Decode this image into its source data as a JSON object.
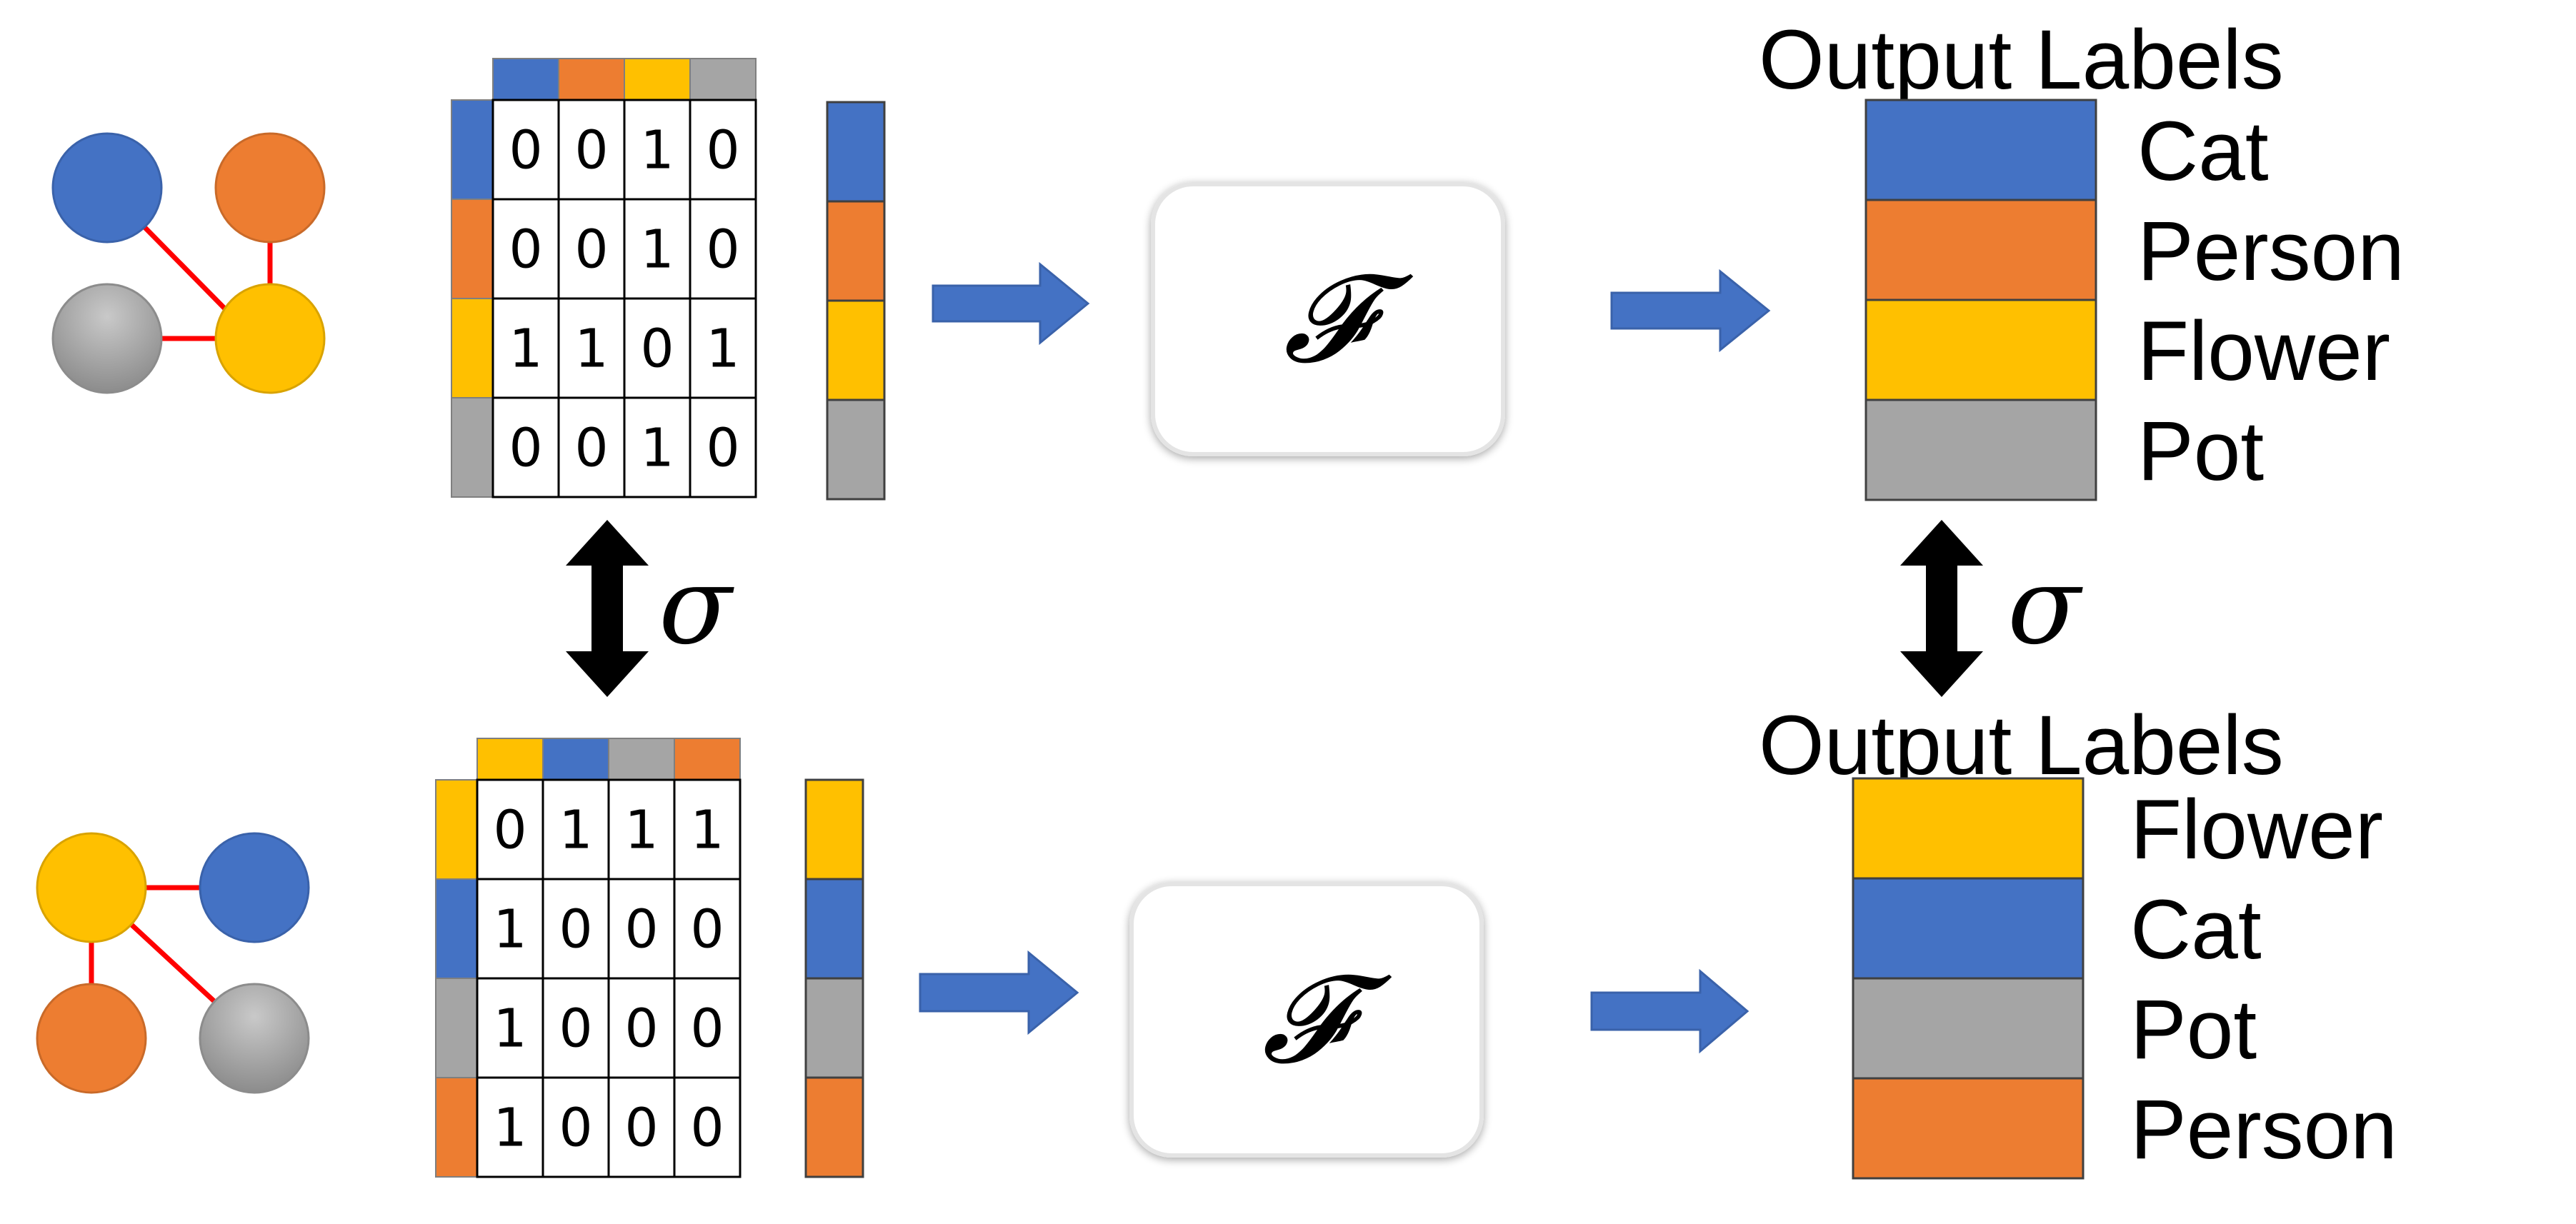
{
  "colors": {
    "blue": "#4472C4",
    "orange": "#ED7D31",
    "yellow": "#FFC000",
    "gray": "#A5A5A5",
    "edge": "#FF0000",
    "arrow": "#4472C4",
    "black": "#000000"
  },
  "top": {
    "graph": {
      "nodes": [
        "blue",
        "orange",
        "gray",
        "yellow"
      ],
      "edges": [
        [
          "blue",
          "yellow"
        ],
        [
          "orange",
          "yellow"
        ],
        [
          "gray",
          "yellow"
        ]
      ]
    },
    "matrix": {
      "header_colors": [
        "blue",
        "orange",
        "yellow",
        "gray"
      ],
      "rows": [
        [
          "0",
          "0",
          "1",
          "0"
        ],
        [
          "0",
          "0",
          "1",
          "0"
        ],
        [
          "1",
          "1",
          "0",
          "1"
        ],
        [
          "0",
          "0",
          "1",
          "0"
        ]
      ]
    },
    "feature_colors": [
      "blue",
      "orange",
      "yellow",
      "gray"
    ],
    "function_symbol": "𝓕",
    "output": {
      "title": "Output Labels",
      "colors": [
        "blue",
        "orange",
        "yellow",
        "gray"
      ],
      "labels": [
        "Cat",
        "Person",
        "Flower",
        "Pot"
      ]
    }
  },
  "bottom": {
    "graph": {
      "nodes": [
        "yellow",
        "blue",
        "orange",
        "gray"
      ],
      "edges": [
        [
          "yellow",
          "blue"
        ],
        [
          "yellow",
          "orange"
        ],
        [
          "yellow",
          "gray"
        ]
      ]
    },
    "matrix": {
      "header_colors": [
        "yellow",
        "blue",
        "gray",
        "orange"
      ],
      "rows": [
        [
          "0",
          "1",
          "1",
          "1"
        ],
        [
          "1",
          "0",
          "0",
          "0"
        ],
        [
          "1",
          "0",
          "0",
          "0"
        ],
        [
          "1",
          "0",
          "0",
          "0"
        ]
      ]
    },
    "feature_colors": [
      "yellow",
      "blue",
      "gray",
      "orange"
    ],
    "function_symbol": "𝓕",
    "output": {
      "title": "Output Labels",
      "colors": [
        "yellow",
        "blue",
        "gray",
        "orange"
      ],
      "labels": [
        "Flower",
        "Cat",
        "Pot",
        "Person"
      ]
    }
  },
  "permutation_symbol": "σ"
}
